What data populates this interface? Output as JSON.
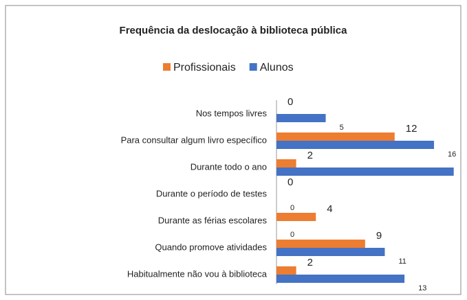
{
  "chart_data": {
    "type": "bar",
    "orientation": "horizontal",
    "title": "Frequência da deslocação à biblioteca pública",
    "categories": [
      "Nos tempos livres",
      "Para consultar algum  livro específico",
      "Durante todo o ano",
      "Durante o período de testes",
      "Durante as férias escolares",
      "Quando promove atividades",
      "Habitualmente não vou à biblioteca"
    ],
    "series": [
      {
        "name": "Profissionais",
        "color": "#ed7d31",
        "values": [
          0,
          12,
          2,
          0,
          4,
          9,
          2
        ]
      },
      {
        "name": "Alunos",
        "color": "#4472c4",
        "values": [
          5,
          16,
          18,
          0,
          0,
          11,
          13
        ]
      }
    ],
    "xlim": [
      0,
      19
    ],
    "legend": "top"
  }
}
